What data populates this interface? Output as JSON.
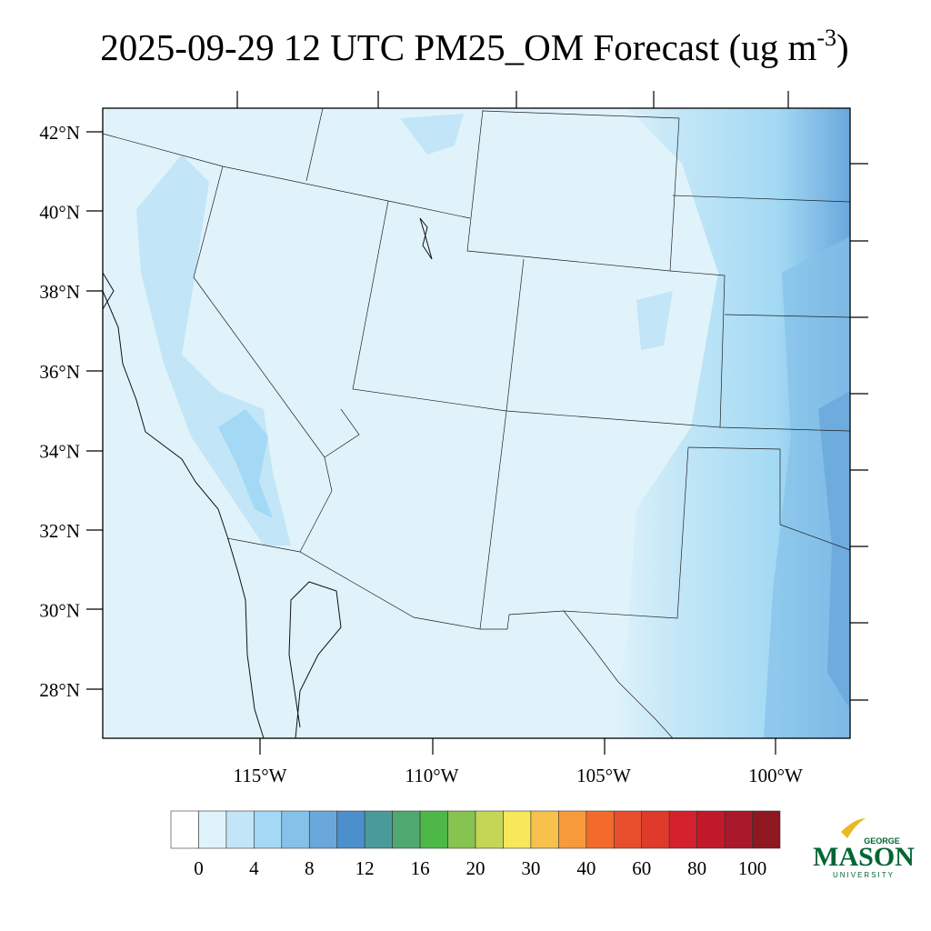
{
  "title": {
    "main": "2025-09-29 12 UTC PM25_OM Forecast (ug m",
    "superscript": "-3",
    "close": ")"
  },
  "map": {
    "lat_labels": [
      "42°N",
      "40°N",
      "38°N",
      "36°N",
      "34°N",
      "32°N",
      "30°N",
      "28°N"
    ],
    "lon_labels": [
      "115°W",
      "110°W",
      "105°W",
      "100°W"
    ]
  },
  "colorbar": {
    "colors": [
      "#ffffff",
      "#e0f3fb",
      "#c2e6f7",
      "#a3d9f4",
      "#85c1e8",
      "#6aa8dc",
      "#4b8fcc",
      "#4b9a9a",
      "#4fa96e",
      "#4db848",
      "#86c350",
      "#c3d656",
      "#f7e75a",
      "#f8c04c",
      "#f79a3c",
      "#f26b2c",
      "#e84e2c",
      "#df3a2a",
      "#d3222d",
      "#c1192a",
      "#a8182a",
      "#8e1720"
    ],
    "labels": [
      0,
      4,
      8,
      12,
      16,
      20,
      30,
      40,
      60,
      80,
      100
    ]
  },
  "logo": {
    "top": "GEORGE",
    "main": "MASON",
    "bottom": "UNIVERSITY"
  }
}
